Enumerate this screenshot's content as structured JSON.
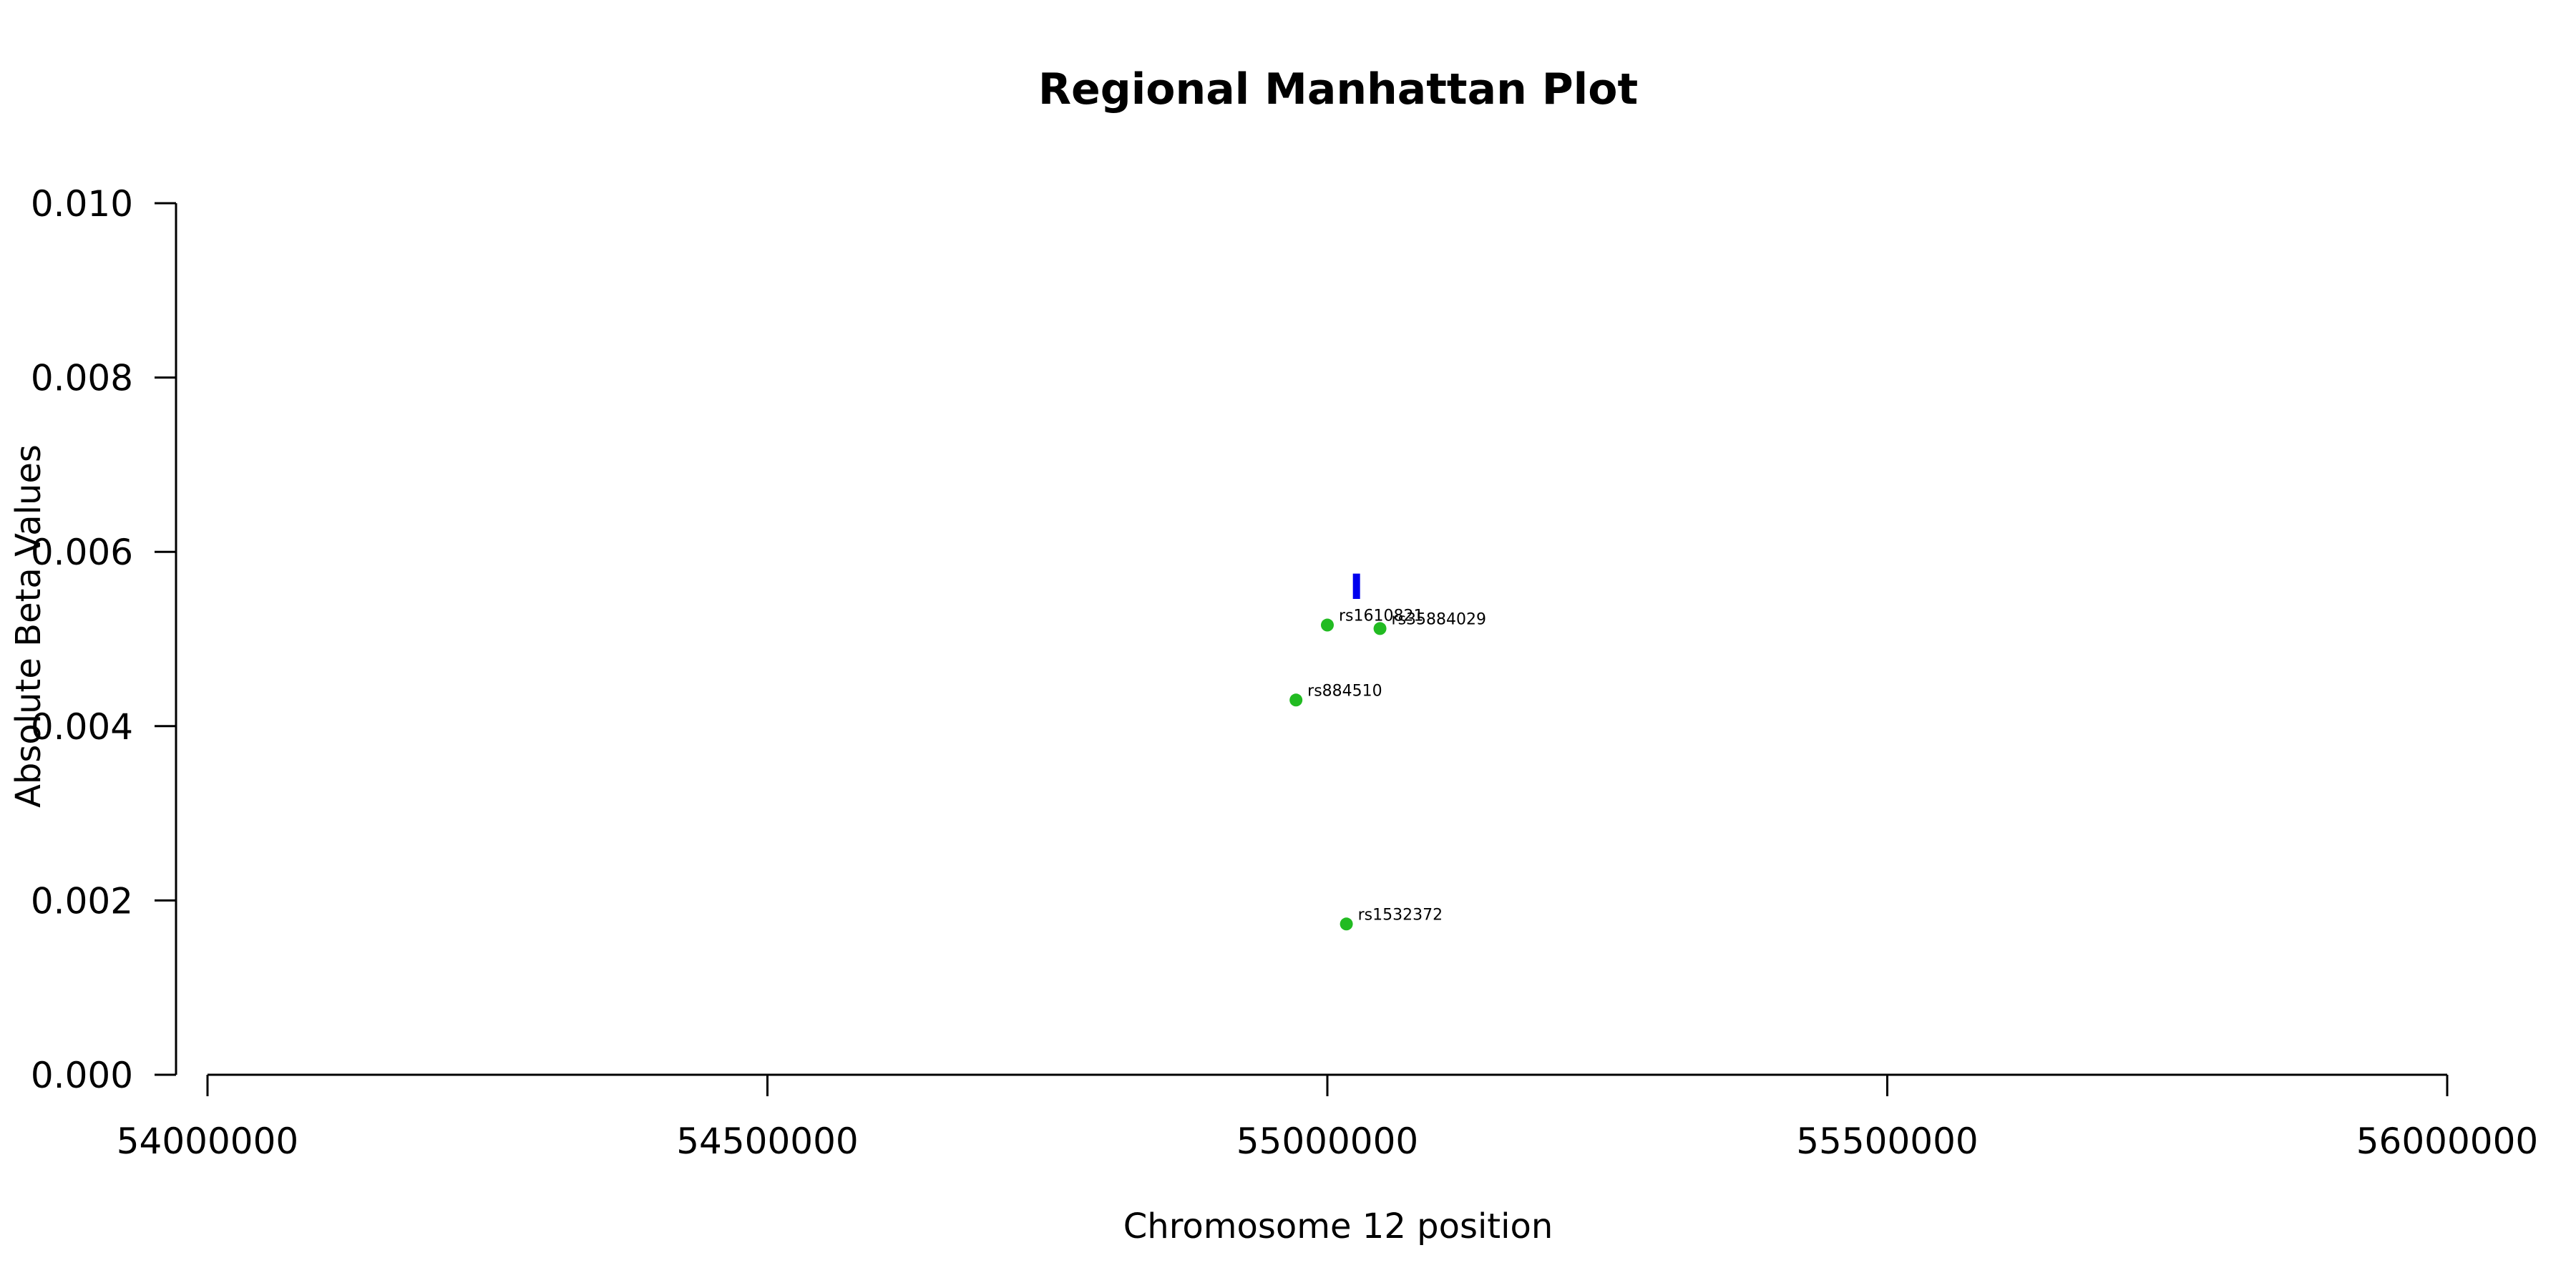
{
  "chart_data": {
    "type": "scatter",
    "title": "Regional Manhattan Plot",
    "xlabel": "Chromosome 12 position",
    "ylabel": "Absolute Beta Values",
    "xlim": [
      54000000,
      56000000
    ],
    "ylim": [
      0,
      0.01
    ],
    "xticks": [
      54000000,
      54500000,
      55000000,
      55500000,
      56000000
    ],
    "xtick_labels": [
      "54000000",
      "54500000",
      "55000000",
      "55500000",
      "56000000"
    ],
    "yticks": [
      0,
      0.002,
      0.004,
      0.006,
      0.008,
      0.01
    ],
    "ytick_labels": [
      "0.000",
      "0.002",
      "0.004",
      "0.006",
      "0.008",
      "0.010"
    ],
    "grid": false,
    "point_color": "#22bb22",
    "points": [
      {
        "label": "rs1610821",
        "x": 55000000,
        "y": 0.00516
      },
      {
        "label": "rs35884029",
        "x": 55047000,
        "y": 0.00512
      },
      {
        "label": "rs884510",
        "x": 54972000,
        "y": 0.0043
      },
      {
        "label": "rs1532372",
        "x": 55017000,
        "y": 0.00173
      }
    ],
    "marker": {
      "x": 55026000,
      "y_range": [
        0.00546,
        0.00575
      ],
      "color": "#0000ee"
    }
  }
}
